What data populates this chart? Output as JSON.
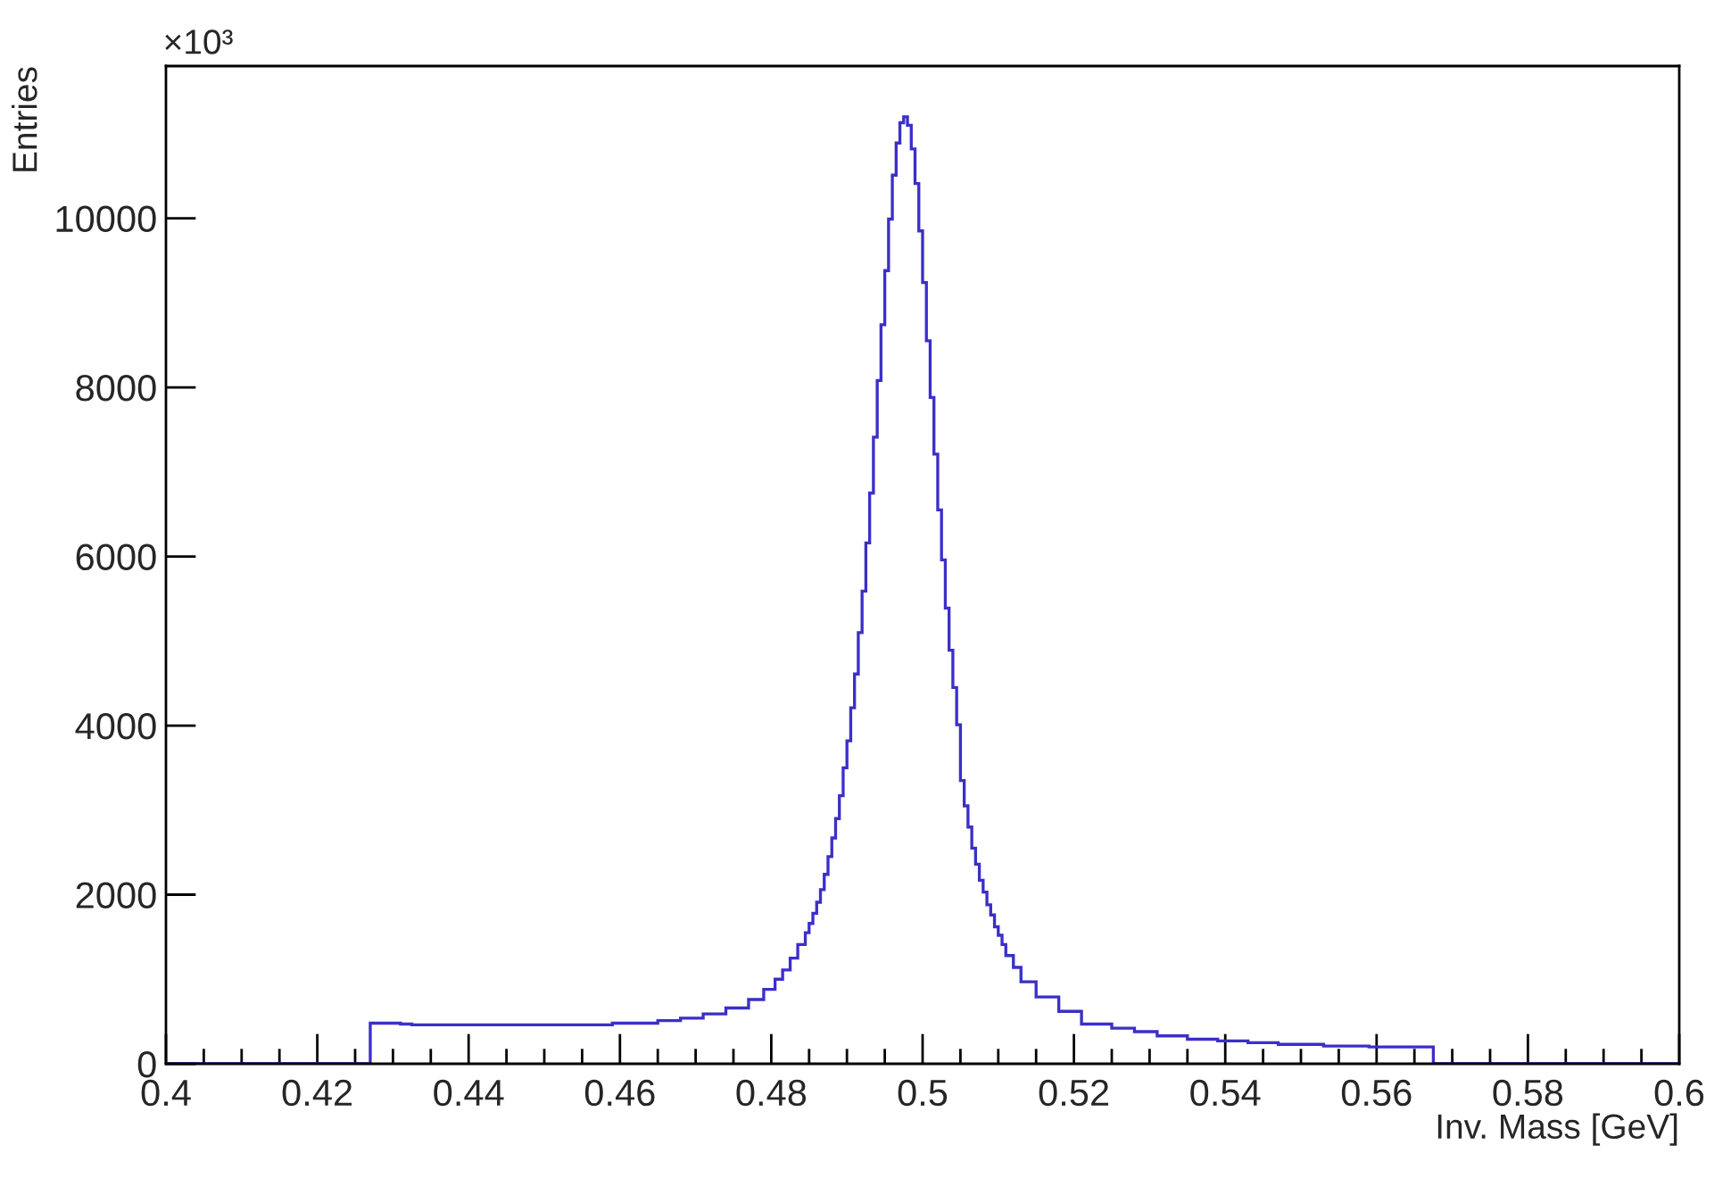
{
  "chart_data": {
    "type": "histogram",
    "xlabel": "Inv. Mass [GeV]",
    "ylabel": "Entries",
    "annotations": [
      "×10³"
    ],
    "color": "#3b2fc9",
    "bins": [
      0.4,
      0.427,
      0.431,
      0.4325,
      0.459,
      0.465,
      0.468,
      0.471,
      0.474,
      0.477,
      0.479,
      0.4805,
      0.4815,
      0.4825,
      0.4835,
      0.4845,
      0.485,
      0.4855,
      0.486,
      0.4865,
      0.487,
      0.4875,
      0.488,
      0.4885,
      0.489,
      0.4895,
      0.49,
      0.4905,
      0.491,
      0.4915,
      0.492,
      0.4925,
      0.493,
      0.4935,
      0.494,
      0.4945,
      0.495,
      0.4955,
      0.496,
      0.4965,
      0.497,
      0.4975,
      0.498,
      0.4985,
      0.499,
      0.4995,
      0.5,
      0.5005,
      0.501,
      0.5015,
      0.502,
      0.5025,
      0.503,
      0.5035,
      0.504,
      0.5045,
      0.505,
      0.5055,
      0.506,
      0.5065,
      0.507,
      0.5075,
      0.508,
      0.5085,
      0.509,
      0.5095,
      0.51,
      0.5105,
      0.511,
      0.512,
      0.513,
      0.515,
      0.518,
      0.521,
      0.525,
      0.528,
      0.531,
      0.535,
      0.539,
      0.543,
      0.547,
      0.553,
      0.559,
      0.5675,
      0.6
    ],
    "values": [
      0,
      480,
      470,
      460,
      480,
      510,
      540,
      590,
      660,
      760,
      880,
      1000,
      1110,
      1250,
      1410,
      1550,
      1660,
      1780,
      1910,
      2060,
      2240,
      2450,
      2670,
      2900,
      3170,
      3500,
      3820,
      4210,
      4610,
      5100,
      5590,
      6160,
      6750,
      7410,
      8080,
      8740,
      9380,
      9990,
      10510,
      10890,
      11130,
      11200,
      11100,
      10820,
      10410,
      9850,
      9240,
      8550,
      7880,
      7210,
      6550,
      5960,
      5390,
      4890,
      4450,
      4010,
      3350,
      3050,
      2800,
      2550,
      2360,
      2170,
      2030,
      1880,
      1760,
      1620,
      1520,
      1410,
      1280,
      1140,
      970,
      790,
      620,
      470,
      420,
      380,
      330,
      290,
      270,
      250,
      230,
      210,
      200,
      0
    ],
    "xlim": [
      0.4,
      0.6
    ],
    "xticks": [
      0.4,
      {
        "value": 0.405,
        "label": null
      },
      {
        "value": 0.41,
        "label": null
      },
      {
        "value": 0.415,
        "label": null
      },
      0.42,
      {
        "value": 0.425,
        "label": null
      },
      {
        "value": 0.43,
        "label": null
      },
      {
        "value": 0.435,
        "label": null
      },
      0.44,
      {
        "value": 0.445,
        "label": null
      },
      {
        "value": 0.45,
        "label": null
      },
      {
        "value": 0.455,
        "label": null
      },
      0.46,
      {
        "value": 0.465,
        "label": null
      },
      {
        "value": 0.47,
        "label": null
      },
      {
        "value": 0.475,
        "label": null
      },
      0.48,
      {
        "value": 0.485,
        "label": null
      },
      {
        "value": 0.49,
        "label": null
      },
      {
        "value": 0.495,
        "label": null
      },
      0.5,
      {
        "value": 0.505,
        "label": null
      },
      {
        "value": 0.51,
        "label": null
      },
      {
        "value": 0.515,
        "label": null
      },
      0.52,
      {
        "value": 0.525,
        "label": null
      },
      {
        "value": 0.53,
        "label": null
      },
      {
        "value": 0.535,
        "label": null
      },
      0.54,
      {
        "value": 0.545,
        "label": null
      },
      {
        "value": 0.55,
        "label": null
      },
      {
        "value": 0.555,
        "label": null
      },
      0.56,
      {
        "value": 0.565,
        "label": null
      },
      {
        "value": 0.57,
        "label": null
      },
      {
        "value": 0.575,
        "label": null
      },
      0.58,
      {
        "value": 0.585,
        "label": null
      },
      {
        "value": 0.59,
        "label": null
      },
      {
        "value": 0.595,
        "label": null
      },
      0.6
    ],
    "ylim": [
      0,
      11800
    ],
    "yticks": [
      0,
      2000,
      4000,
      6000,
      8000,
      10000
    ],
    "grid": false,
    "legend": false
  }
}
